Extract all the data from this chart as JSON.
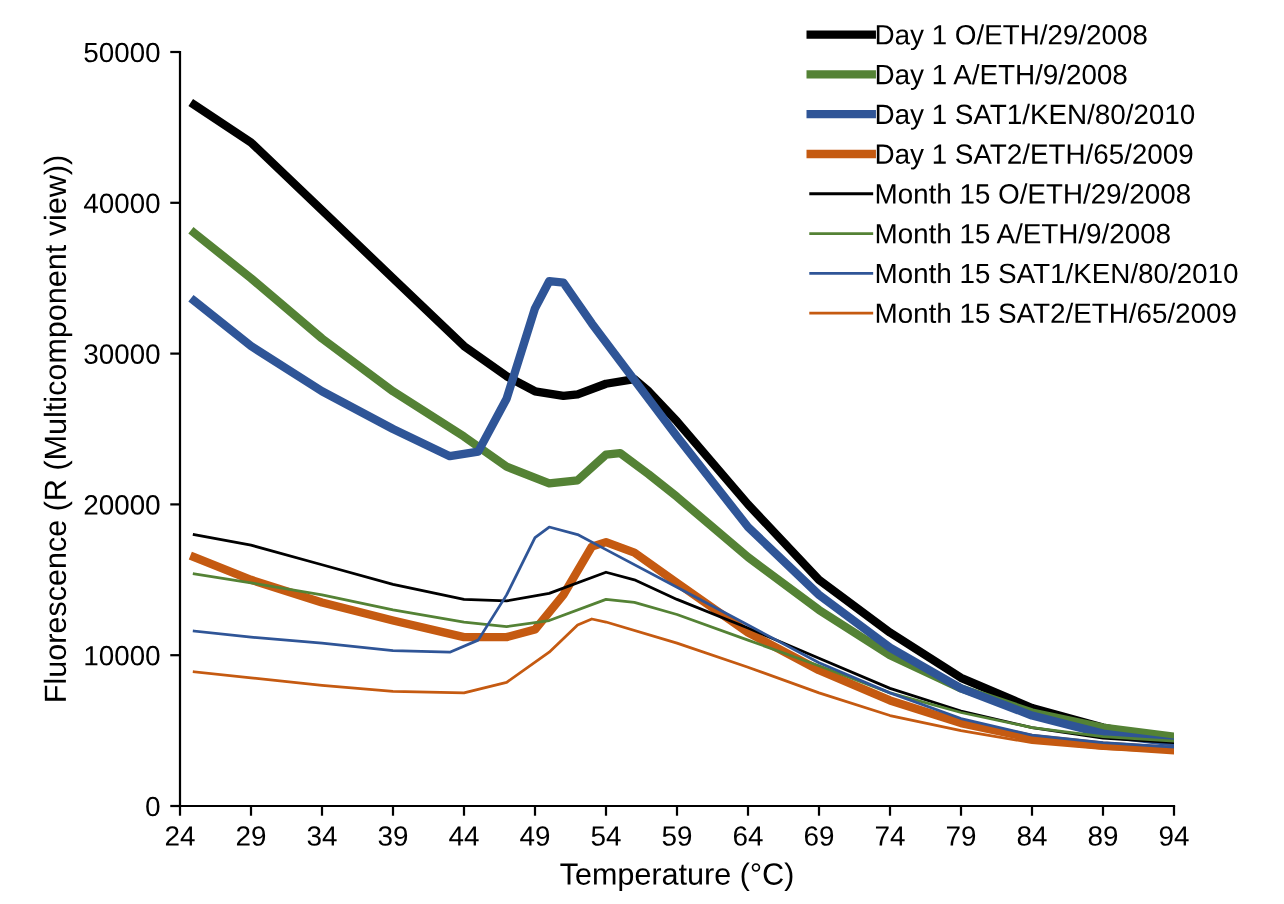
{
  "chart_data": {
    "type": "line",
    "xlabel": "Temperature (°C)",
    "ylabel": "Fluorescence (R (Multicomponent view))",
    "xlim": [
      24,
      94
    ],
    "xticks": [
      24,
      29,
      34,
      39,
      44,
      49,
      54,
      59,
      64,
      69,
      74,
      79,
      84,
      89,
      94
    ],
    "ylim": [
      0,
      50000
    ],
    "yticks": [
      0,
      10000,
      20000,
      30000,
      40000,
      50000
    ],
    "grid": false,
    "legend": "top right",
    "marker": "none",
    "line_style": "solid",
    "series": [
      {
        "name": "Day 1 O/ETH/29/2008",
        "color": "#000000",
        "x": [
          25,
          29,
          34,
          39,
          44,
          47,
          49,
          51,
          52,
          54,
          56,
          57,
          59,
          64,
          69,
          74,
          79,
          84,
          89,
          94
        ],
        "values": [
          46500,
          44000,
          39500,
          35000,
          30500,
          28500,
          27500,
          27200,
          27300,
          28000,
          28300,
          27500,
          25500,
          20000,
          15000,
          11500,
          8500,
          6500,
          5200,
          4300
        ]
      },
      {
        "name": "Day 1 A/ETH/9/2008",
        "color": "#548235",
        "x": [
          25,
          29,
          34,
          39,
          44,
          47,
          50,
          52,
          54,
          55,
          57,
          59,
          64,
          69,
          74,
          79,
          84,
          89,
          94
        ],
        "values": [
          38000,
          35000,
          31000,
          27500,
          24500,
          22500,
          21400,
          21600,
          23300,
          23400,
          22000,
          20500,
          16500,
          13000,
          10000,
          7800,
          6200,
          5200,
          4600
        ]
      },
      {
        "name": "Day 1 SAT1/KEN/80/2010",
        "color": "#2f5597",
        "x": [
          25,
          29,
          34,
          39,
          43,
          45,
          47,
          49,
          50,
          51,
          53,
          55,
          59,
          64,
          69,
          74,
          79,
          84,
          89,
          94
        ],
        "values": [
          33500,
          30500,
          27500,
          25000,
          23200,
          23500,
          27000,
          33000,
          34800,
          34700,
          32000,
          29500,
          24500,
          18500,
          14000,
          10500,
          7800,
          6000,
          4800,
          4200
        ]
      },
      {
        "name": "Day 1 SAT2/ETH/65/2009",
        "color": "#c55a11",
        "x": [
          25,
          29,
          34,
          39,
          44,
          47,
          49,
          51,
          53,
          54,
          56,
          59,
          64,
          69,
          74,
          79,
          84,
          89,
          94
        ],
        "values": [
          16500,
          15000,
          13500,
          12300,
          11200,
          11200,
          11700,
          14000,
          17200,
          17500,
          16800,
          14800,
          11500,
          9000,
          7000,
          5500,
          4500,
          4000,
          3700
        ]
      },
      {
        "name": "Month 15 O/ETH/29/2008",
        "color": "#000000",
        "x": [
          25,
          29,
          34,
          39,
          44,
          47,
          50,
          54,
          56,
          59,
          64,
          69,
          74,
          79,
          84,
          89,
          94
        ],
        "values": [
          18000,
          17300,
          16000,
          14700,
          13700,
          13600,
          14100,
          15500,
          15000,
          13700,
          11800,
          9800,
          7800,
          6300,
          5200,
          4500,
          4200
        ]
      },
      {
        "name": "Month 15 A/ETH/9/2008",
        "color": "#548235",
        "x": [
          25,
          29,
          34,
          39,
          44,
          47,
          50,
          54,
          56,
          59,
          64,
          69,
          74,
          79,
          84,
          89,
          94
        ],
        "values": [
          15400,
          14800,
          14000,
          13000,
          12200,
          11900,
          12300,
          13700,
          13500,
          12700,
          11000,
          9300,
          7500,
          6200,
          5200,
          4600,
          4300
        ]
      },
      {
        "name": "Month 15 SAT1/KEN/80/2010",
        "color": "#2f5597",
        "x": [
          25,
          29,
          34,
          39,
          43,
          45,
          47,
          49,
          50,
          52,
          54,
          59,
          64,
          69,
          74,
          79,
          84,
          89,
          94
        ],
        "values": [
          11600,
          11200,
          10800,
          10300,
          10200,
          11000,
          14000,
          17800,
          18500,
          18000,
          17000,
          14500,
          12000,
          9500,
          7500,
          5800,
          4700,
          4200,
          3900
        ]
      },
      {
        "name": "Month 15 SAT2/ETH/65/2009",
        "color": "#c55a11",
        "x": [
          25,
          29,
          34,
          39,
          44,
          47,
          50,
          52,
          53,
          54,
          59,
          64,
          69,
          74,
          79,
          84,
          89,
          94
        ],
        "values": [
          8900,
          8500,
          8000,
          7600,
          7500,
          8200,
          10200,
          12000,
          12400,
          12200,
          10800,
          9200,
          7500,
          6000,
          5000,
          4200,
          3800,
          3600
        ]
      }
    ]
  }
}
